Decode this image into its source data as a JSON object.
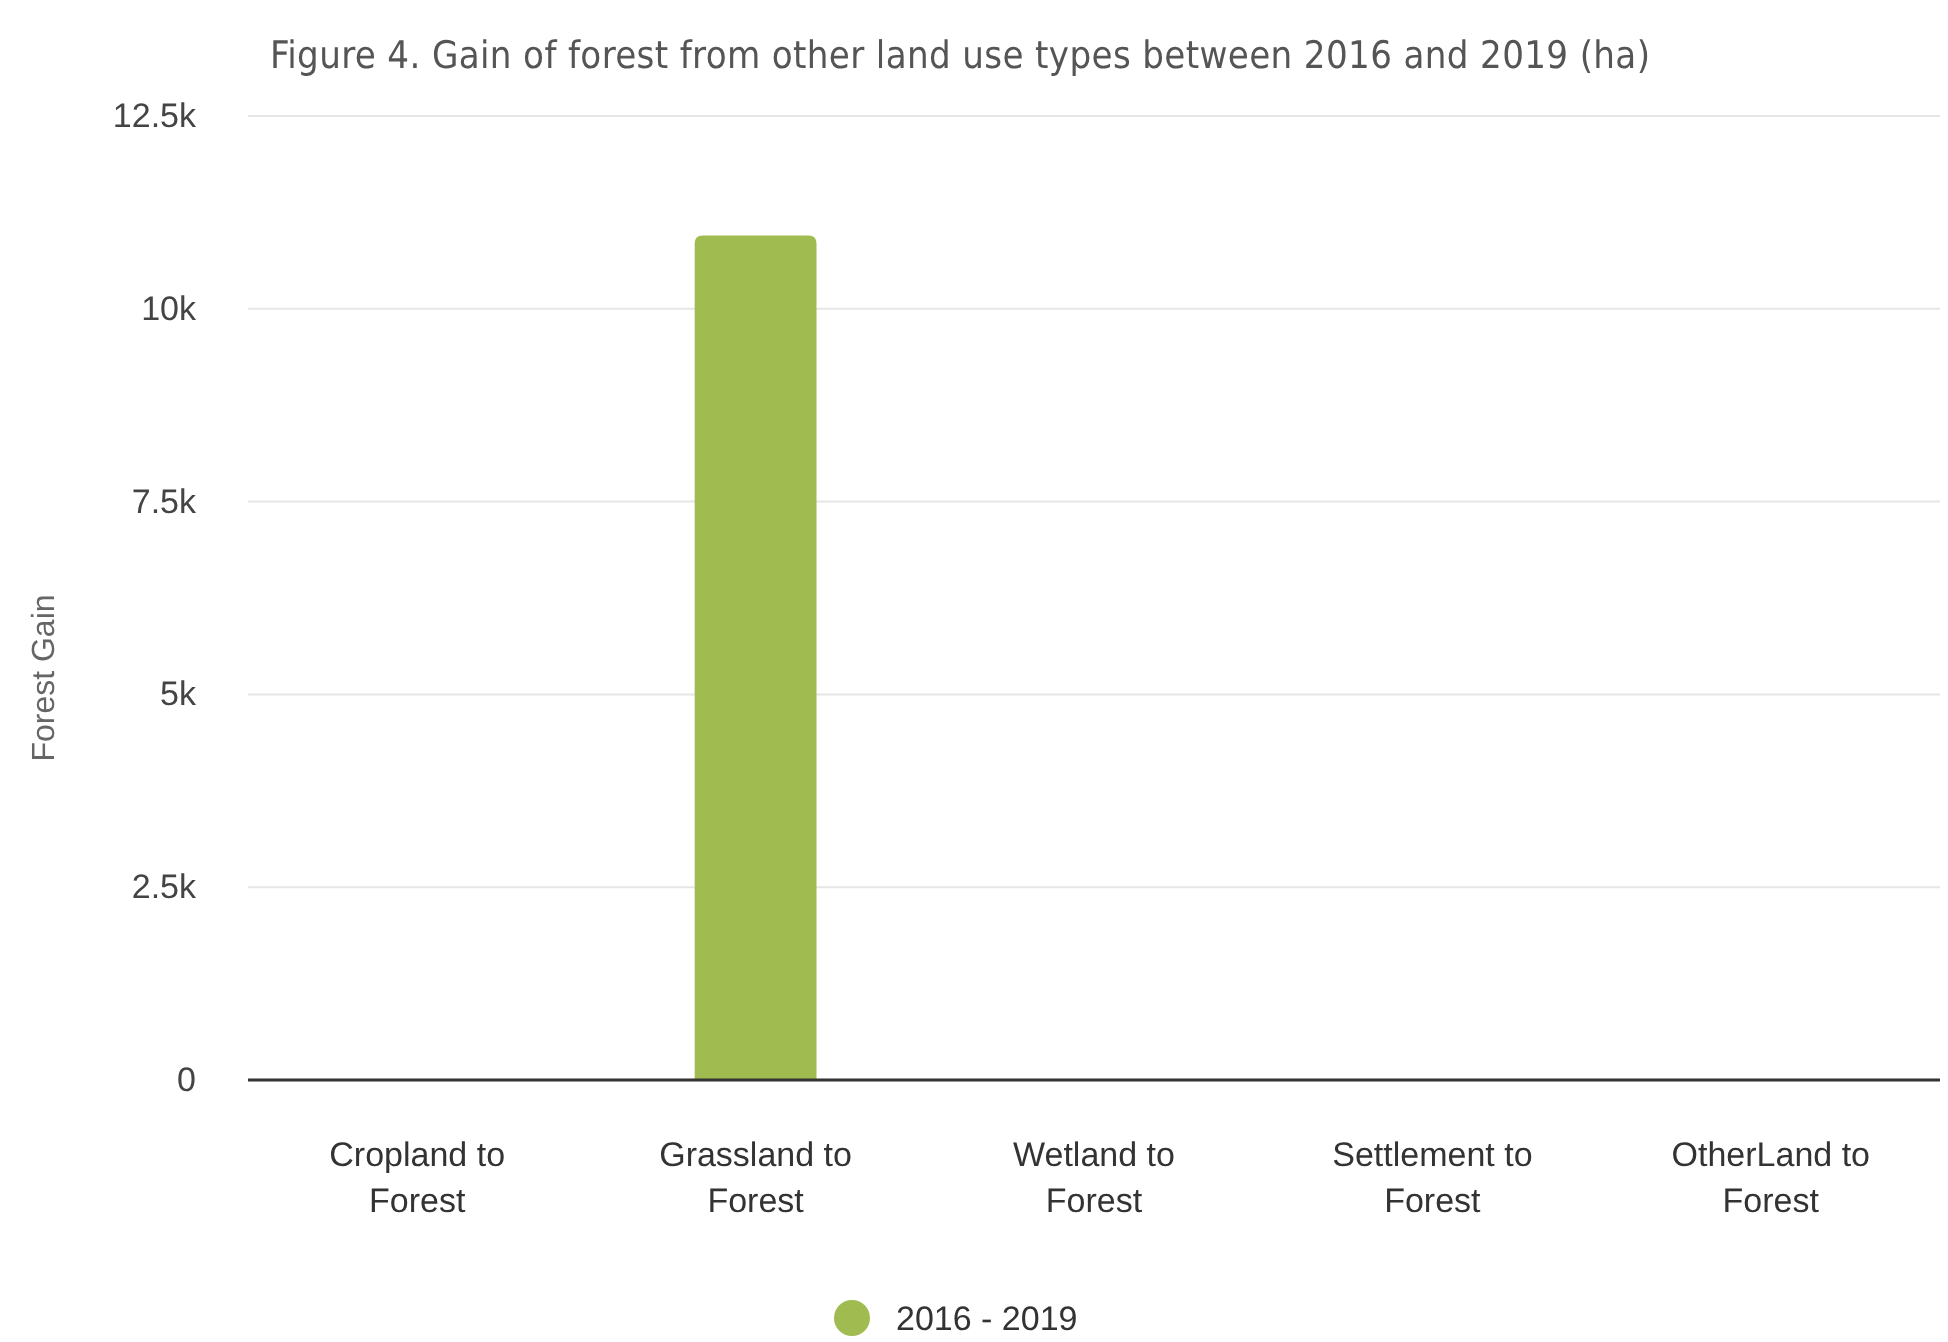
{
  "chart_data": {
    "type": "bar",
    "title": "Figure 4. Gain of forest from other land use types between 2016 and 2019 (ha)",
    "ylabel": "Forest Gain",
    "categories": [
      "Cropland to Forest",
      "Grassland to Forest",
      "Wetland to Forest",
      "Settlement to Forest",
      "OtherLand to Forest"
    ],
    "series": [
      {
        "name": "2016 - 2019",
        "color": "#a0bc50",
        "values": [
          0,
          10950,
          0,
          0,
          0
        ]
      }
    ],
    "ylim": [
      0,
      12500
    ],
    "yticks": [
      0,
      {
        "value": 2500,
        "label": "2.5k"
      },
      {
        "value": 5000,
        "label": "5k"
      },
      {
        "value": 7500,
        "label": "7.5k"
      },
      {
        "value": 10000,
        "label": "10k"
      },
      {
        "value": 12500,
        "label": "12.5k"
      }
    ],
    "grid": "y",
    "legend": "bottom"
  }
}
